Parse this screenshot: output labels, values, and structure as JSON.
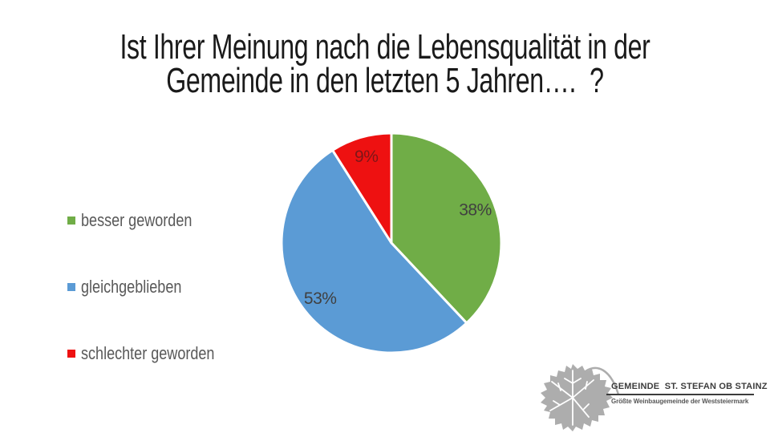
{
  "slide": {
    "title_line1": "Ist Ihrer Meinung nach die Lebensqualität in der",
    "title_line2": "Gemeinde in den letzten 5 Jahren….  ?"
  },
  "chart_data": {
    "type": "pie",
    "title": "Ist Ihrer Meinung nach die Lebensqualität in der Gemeinde in den letzten 5 Jahren…. ?",
    "labels": [
      "besser geworden",
      "gleichgeblieben",
      "schlechter geworden"
    ],
    "values": [
      38,
      53,
      9
    ],
    "unit": "%",
    "colors": [
      "#70AD47",
      "#5B9BD5",
      "#EE1111"
    ],
    "slice_label_colors": [
      "#404040",
      "#404040",
      "#7E1618"
    ],
    "slice_border_color": "#FFFFFF",
    "start_angle_deg": 0,
    "direction": "clockwise",
    "legend_position": "left",
    "label_radius_ratio": 0.82
  },
  "logo": {
    "name": "GEMEINDE  ST. STEFAN OB STAINZ",
    "tagline": "Größte Weinbaugemeinde der Weststeiermark",
    "leaf_icon": "grape-leaf"
  },
  "colors": {
    "background": "#FFFFFF",
    "title_text": "#1A1A1A",
    "legend_text": "#595959",
    "logo_text": "#3C3C3C",
    "logo_tagline": "#575757",
    "logo_leaf": "#ADADAD"
  }
}
